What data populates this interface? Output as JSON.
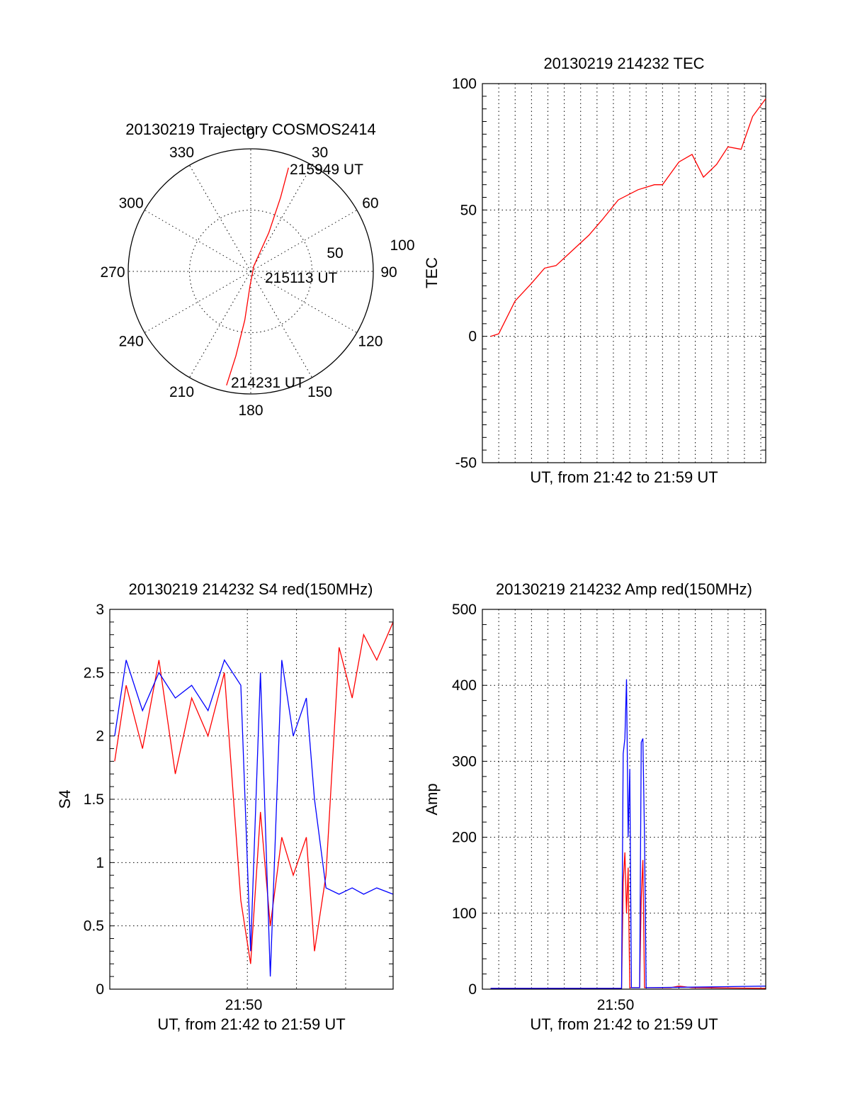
{
  "chart_data": [
    {
      "id": "trajectory",
      "type": "scatter",
      "subtype": "polar-trajectory",
      "title": "20130219 Trajectory COSMOS2414",
      "azimuth_labels": [
        "0",
        "30",
        "60",
        "90",
        "120",
        "150",
        "180",
        "210",
        "240",
        "270",
        "300",
        "330"
      ],
      "radial_labels": [
        "50",
        "100"
      ],
      "radial_range": [
        0,
        100
      ],
      "grid": true,
      "series": [
        {
          "color": "#ff0000",
          "points": [
            {
              "az": 192,
              "r": 95
            },
            {
              "az": 190,
              "r": 70
            },
            {
              "az": 187,
              "r": 40
            },
            {
              "az": 183,
              "r": 12
            },
            {
              "az": 30,
              "r": 5
            },
            {
              "az": 25,
              "r": 35
            },
            {
              "az": 22,
              "r": 65
            },
            {
              "az": 20,
              "r": 90
            }
          ]
        }
      ],
      "annotations": [
        "214231 UT",
        "215113 UT",
        "215949 UT"
      ]
    },
    {
      "id": "tec",
      "type": "line",
      "title": "20130219 214232 TEC",
      "xlabel": "UT, from 21:42 to 21:59 UT",
      "ylabel": "TEC",
      "xlim": [
        0,
        17.3
      ],
      "ylim": [
        -50,
        100
      ],
      "yticks": [
        "-50",
        "0",
        "50",
        "100"
      ],
      "grid": true,
      "series": [
        {
          "color": "#ff0000",
          "x": [
            0.5,
            1.0,
            2.0,
            3.0,
            3.8,
            4.5,
            5.5,
            6.5,
            7.3,
            8.3,
            9.5,
            10.5,
            11.0,
            12.0,
            12.8,
            13.5,
            14.3,
            15.0,
            15.8,
            16.5,
            17.3
          ],
          "y": [
            0,
            1,
            14,
            21,
            27,
            28,
            34,
            40,
            46,
            54,
            58,
            60,
            60,
            69,
            72,
            63,
            68,
            75,
            74,
            87,
            94
          ]
        }
      ]
    },
    {
      "id": "s4",
      "type": "line",
      "title": "20130219 214232 S4 red(150MHz)",
      "xlabel": "UT, from 21:42 to 21:59 UT",
      "ylabel": "S4",
      "xticks": [
        "21:50"
      ],
      "xlim": [
        0,
        17.3
      ],
      "ylim": [
        0,
        3
      ],
      "yticks": [
        "0",
        "0.5",
        "1",
        "1.5",
        "2",
        "2.5",
        "3"
      ],
      "grid": true,
      "series": [
        {
          "color": "#ff0000",
          "x": [
            0.3,
            1.0,
            2.0,
            3.0,
            4.0,
            5.0,
            6.0,
            7.0,
            8.0,
            8.6,
            9.2,
            9.8,
            10.5,
            11.2,
            12.0,
            12.5,
            13.2,
            14.0,
            14.8,
            15.5,
            16.3,
            17.3
          ],
          "y": [
            1.8,
            2.4,
            1.9,
            2.6,
            1.7,
            2.3,
            2.0,
            2.5,
            0.7,
            0.2,
            1.4,
            0.5,
            1.2,
            0.9,
            1.2,
            0.3,
            0.9,
            2.7,
            2.3,
            2.8,
            2.6,
            2.9
          ]
        },
        {
          "color": "#0000ff",
          "x": [
            0.3,
            1.0,
            2.0,
            3.0,
            4.0,
            5.0,
            6.0,
            7.0,
            8.0,
            8.6,
            9.2,
            9.8,
            10.5,
            11.2,
            12.0,
            12.5,
            13.2,
            14.0,
            14.8,
            15.5,
            16.3,
            17.3
          ],
          "y": [
            2.0,
            2.6,
            2.2,
            2.5,
            2.3,
            2.4,
            2.2,
            2.6,
            2.4,
            0.3,
            2.5,
            0.1,
            2.6,
            2.0,
            2.3,
            1.5,
            0.8,
            0.75,
            0.8,
            0.75,
            0.8,
            0.75
          ]
        }
      ]
    },
    {
      "id": "amp",
      "type": "line",
      "title": "20130219 214232 Amp red(150MHz)",
      "xlabel": "UT, from 21:42 to 21:59 UT",
      "ylabel": "Amp",
      "xticks": [
        "21:50"
      ],
      "xlim": [
        0,
        17.3
      ],
      "ylim": [
        0,
        500
      ],
      "yticks": [
        "0",
        "100",
        "200",
        "300",
        "400",
        "500"
      ],
      "grid": true,
      "series": [
        {
          "color": "#ff0000",
          "x": [
            0.5,
            8.5,
            8.6,
            8.7,
            8.8,
            8.9,
            9.0,
            9.6,
            9.7,
            9.8,
            9.9,
            11.5,
            12.0,
            12.8,
            17.3
          ],
          "y": [
            1,
            1,
            140,
            180,
            100,
            160,
            2,
            2,
            120,
            170,
            2,
            2,
            4,
            2,
            1
          ]
        },
        {
          "color": "#0000ff",
          "x": [
            0.5,
            8.5,
            8.6,
            8.7,
            8.8,
            8.9,
            9.0,
            9.1,
            9.6,
            9.7,
            9.8,
            9.9,
            10.0,
            14.0,
            17.3
          ],
          "y": [
            1,
            1,
            310,
            330,
            408,
            200,
            290,
            2,
            2,
            325,
            330,
            200,
            2,
            3,
            4
          ]
        }
      ]
    }
  ]
}
